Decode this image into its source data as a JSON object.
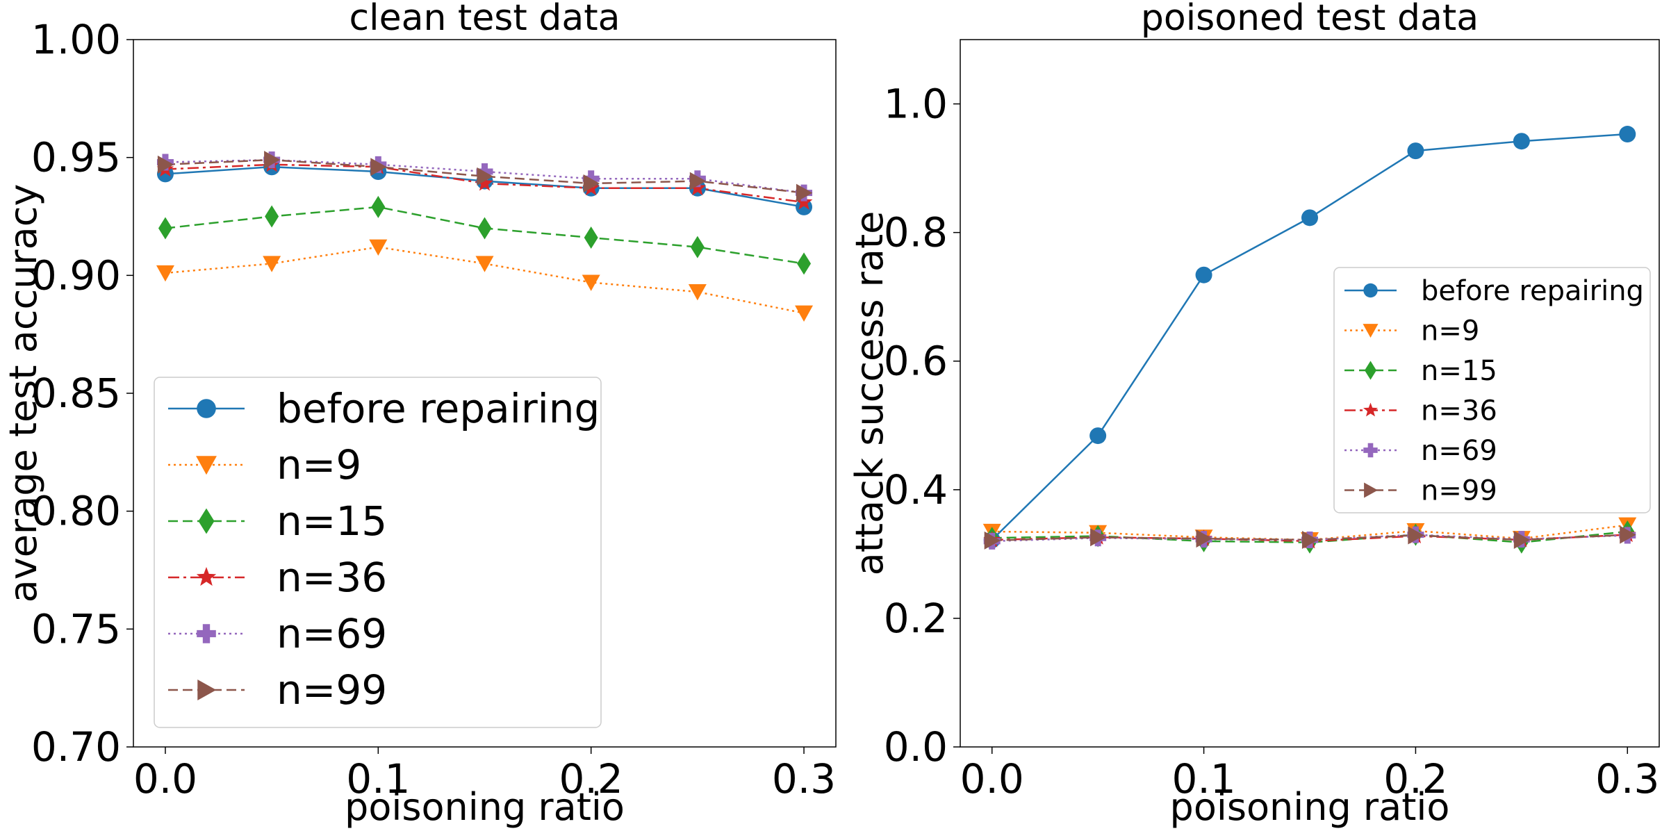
{
  "chart_data": [
    {
      "type": "line",
      "title": "clean test data",
      "xlabel": "poisoning ratio",
      "ylabel": "average test accuracy",
      "xlim": [
        -0.015,
        0.315
      ],
      "ylim": [
        0.7,
        1.0
      ],
      "xticks": [
        "0.0",
        "0.1",
        "0.2",
        "0.3"
      ],
      "yticks": [
        "0.70",
        "0.75",
        "0.80",
        "0.85",
        "0.90",
        "0.95",
        "1.00"
      ],
      "x": [
        0.0,
        0.05,
        0.1,
        0.15,
        0.2,
        0.25,
        0.3
      ],
      "legend_loc": "lower-left",
      "series": [
        {
          "name": "before repairing",
          "color": "#1f77b4",
          "marker": "circle",
          "dash": "solid",
          "values": [
            0.943,
            0.946,
            0.944,
            0.94,
            0.937,
            0.937,
            0.929
          ]
        },
        {
          "name": "n=9",
          "color": "#ff7f0e",
          "marker": "triangle-down",
          "dash": "dotted",
          "values": [
            0.901,
            0.905,
            0.912,
            0.905,
            0.897,
            0.893,
            0.884
          ]
        },
        {
          "name": "n=15",
          "color": "#2ca02c",
          "marker": "diamond",
          "dash": "dashed",
          "values": [
            0.92,
            0.925,
            0.929,
            0.92,
            0.916,
            0.912,
            0.905
          ]
        },
        {
          "name": "n=36",
          "color": "#d62728",
          "marker": "star",
          "dash": "dashdot",
          "values": [
            0.945,
            0.947,
            0.946,
            0.939,
            0.937,
            0.937,
            0.931
          ]
        },
        {
          "name": "n=69",
          "color": "#9467bd",
          "marker": "plus",
          "dash": "dotted",
          "values": [
            0.948,
            0.949,
            0.947,
            0.944,
            0.941,
            0.941,
            0.935
          ]
        },
        {
          "name": "n=99",
          "color": "#8c564b",
          "marker": "triangle-right",
          "dash": "dashed",
          "values": [
            0.947,
            0.949,
            0.946,
            0.942,
            0.939,
            0.94,
            0.935
          ]
        }
      ]
    },
    {
      "type": "line",
      "title": "poisoned test data",
      "xlabel": "poisoning ratio",
      "ylabel": "attack success rate",
      "xlim": [
        -0.015,
        0.315
      ],
      "ylim": [
        0.0,
        1.1
      ],
      "xticks": [
        "0.0",
        "0.1",
        "0.2",
        "0.3"
      ],
      "yticks": [
        "0.0",
        "0.2",
        "0.4",
        "0.6",
        "0.8",
        "1.0"
      ],
      "x": [
        0.0,
        0.05,
        0.1,
        0.15,
        0.2,
        0.25,
        0.3
      ],
      "legend_loc": "center-right",
      "series": [
        {
          "name": "before repairing",
          "color": "#1f77b4",
          "marker": "circle",
          "dash": "solid",
          "values": [
            0.322,
            0.484,
            0.734,
            0.823,
            0.927,
            0.942,
            0.953
          ]
        },
        {
          "name": "n=9",
          "color": "#ff7f0e",
          "marker": "triangle-down",
          "dash": "dotted",
          "values": [
            0.335,
            0.333,
            0.326,
            0.322,
            0.336,
            0.324,
            0.345
          ]
        },
        {
          "name": "n=15",
          "color": "#2ca02c",
          "marker": "diamond",
          "dash": "dashed",
          "values": [
            0.325,
            0.328,
            0.32,
            0.318,
            0.33,
            0.318,
            0.335
          ]
        },
        {
          "name": "n=36",
          "color": "#d62728",
          "marker": "star",
          "dash": "dashdot",
          "values": [
            0.322,
            0.326,
            0.324,
            0.32,
            0.328,
            0.322,
            0.33
          ]
        },
        {
          "name": "n=69",
          "color": "#9467bd",
          "marker": "plus",
          "dash": "dotted",
          "values": [
            0.32,
            0.325,
            0.323,
            0.322,
            0.33,
            0.323,
            0.329
          ]
        },
        {
          "name": "n=99",
          "color": "#8c564b",
          "marker": "triangle-right",
          "dash": "dashed",
          "values": [
            0.321,
            0.326,
            0.324,
            0.322,
            0.329,
            0.322,
            0.33
          ]
        }
      ]
    }
  ]
}
